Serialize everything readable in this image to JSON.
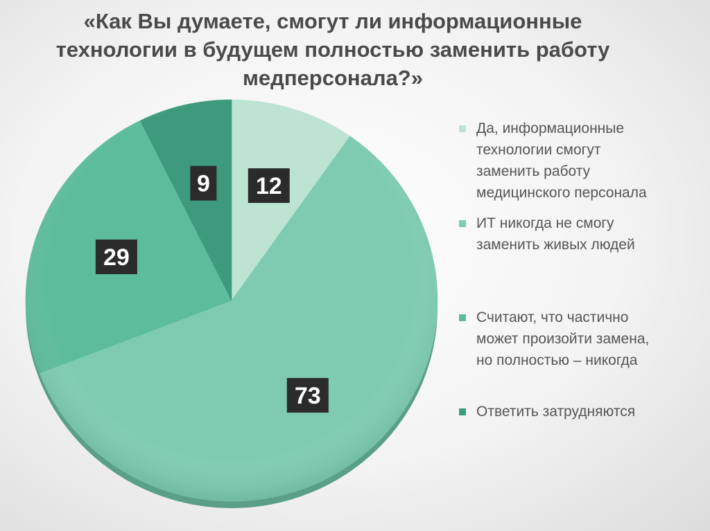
{
  "chart_data": {
    "type": "pie",
    "title_lines": [
      "«Как Вы думаете, смогут ли информационные",
      "технологии в будущем полностью заменить работу",
      "медперсонала?»"
    ],
    "slices": [
      {
        "label_lines": [
          "Да, информационные",
          "технологии смогут",
          "заменить работу",
          "медицинского персонала"
        ],
        "value": 12,
        "color": "#bde3d3"
      },
      {
        "label_lines": [
          "ИТ никогда не смогу",
          "заменить живых людей"
        ],
        "value": 73,
        "color": "#7ecbb2"
      },
      {
        "label_lines": [
          "Считают, что частично",
          "может произойти замена,",
          "но полностью – никогда"
        ],
        "value": 29,
        "color": "#5cbc9b"
      },
      {
        "label_lines": [
          "Ответить затрудняются"
        ],
        "value": 9,
        "color": "#3e9a7c"
      }
    ],
    "legend_position": "right"
  }
}
